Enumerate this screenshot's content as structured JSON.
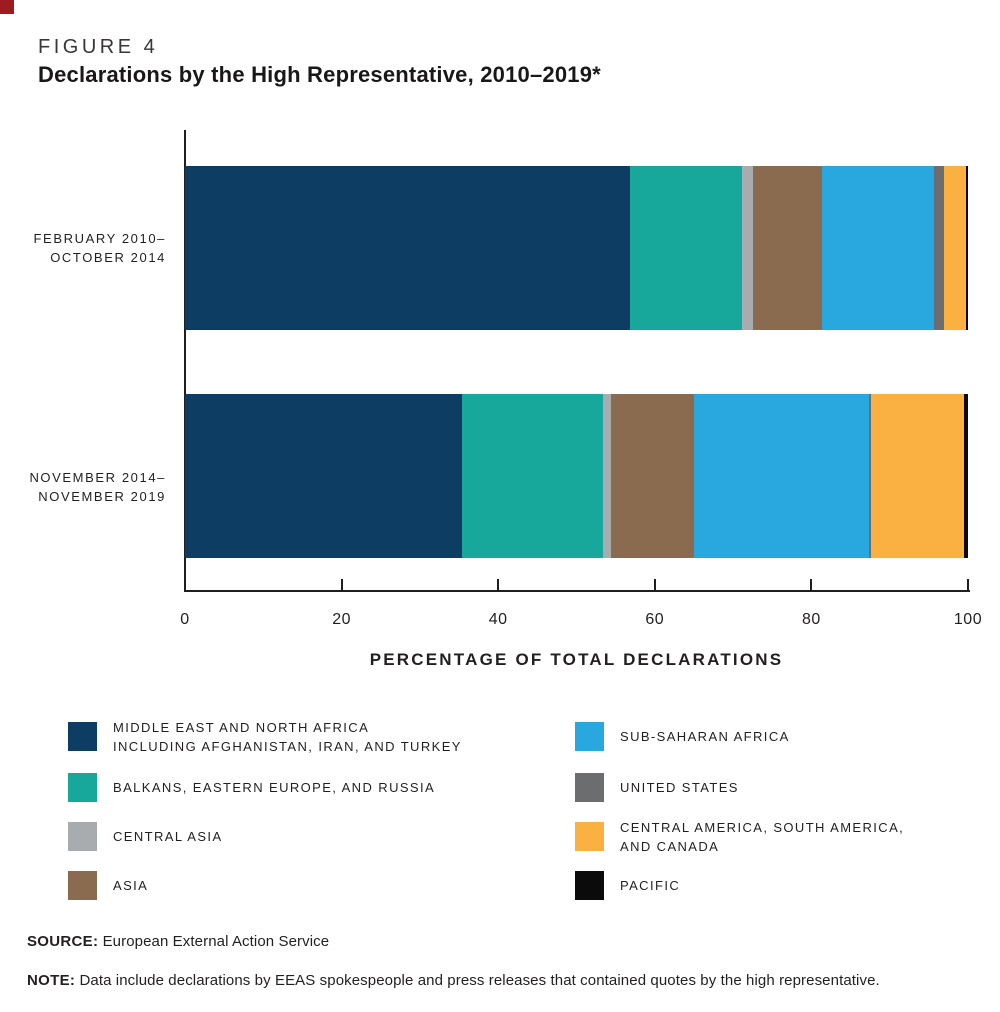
{
  "header": {
    "figure_label": "FIGURE 4",
    "title": "Declarations by the High Representative, 2010–2019*"
  },
  "footer": {
    "source_label": "SOURCE:",
    "source_text": "European External Action Service",
    "note_label": "NOTE:",
    "note_text": "Data include declarations by EEAS spokespeople and press releases that contained quotes by the high representative."
  },
  "colors": {
    "corner_accent": "#9e1b1f",
    "text": "#231f20",
    "axis": "#1f1f1f"
  },
  "chart_data": {
    "type": "bar",
    "orientation": "horizontal-stacked",
    "title": "Declarations by the High Representative, 2010–2019*",
    "xlabel": "PERCENTAGE OF TOTAL DECLARATIONS",
    "ylabel": "",
    "xlim": [
      0,
      100
    ],
    "xticks": [
      0,
      20,
      40,
      60,
      80,
      100
    ],
    "grid": false,
    "categories": [
      [
        "FEBRUARY 2010–",
        "OCTOBER 2014"
      ],
      [
        "NOVEMBER 2014–",
        "NOVEMBER 2019"
      ]
    ],
    "series": [
      {
        "name": "MIDDLE EAST AND NORTH AFRICA INCLUDING AFGHANISTAN, IRAN, AND TURKEY",
        "color": "#0d3d62",
        "values": [
          56.8,
          35.4
        ]
      },
      {
        "name": "BALKANS, EASTERN EUROPE, AND RUSSIA",
        "color": "#17a79b",
        "values": [
          14.4,
          18.0
        ]
      },
      {
        "name": "CENTRAL ASIA",
        "color": "#a8acaf",
        "values": [
          1.3,
          1.0
        ]
      },
      {
        "name": "ASIA",
        "color": "#8a6b50",
        "values": [
          8.9,
          10.6
        ]
      },
      {
        "name": "SUB-SAHARAN AFRICA",
        "color": "#29a8e0",
        "values": [
          14.3,
          22.4
        ]
      },
      {
        "name": "UNITED STATES",
        "color": "#6c6d6f",
        "values": [
          1.2,
          0.2
        ]
      },
      {
        "name": "CENTRAL AMERICA, SOUTH AMERICA, AND CANADA",
        "color": "#fbb042",
        "values": [
          2.8,
          11.9
        ]
      },
      {
        "name": "PACIFIC",
        "color": "#0b0b0b",
        "values": [
          0.3,
          0.5
        ]
      }
    ],
    "legend_position": "bottom-two-columns",
    "legend": [
      {
        "column": "left",
        "row": 0,
        "color": "#0d3d62",
        "lines": [
          "MIDDLE EAST AND NORTH AFRICA",
          "INCLUDING AFGHANISTAN, IRAN, AND TURKEY"
        ]
      },
      {
        "column": "left",
        "row": 1,
        "color": "#17a79b",
        "lines": [
          "BALKANS, EASTERN EUROPE, AND RUSSIA"
        ]
      },
      {
        "column": "left",
        "row": 2,
        "color": "#a8acaf",
        "lines": [
          "CENTRAL ASIA"
        ]
      },
      {
        "column": "left",
        "row": 3,
        "color": "#8a6b50",
        "lines": [
          "ASIA"
        ]
      },
      {
        "column": "right",
        "row": 0,
        "color": "#29a8e0",
        "lines": [
          "SUB-SAHARAN AFRICA"
        ]
      },
      {
        "column": "right",
        "row": 1,
        "color": "#6c6d6f",
        "lines": [
          "UNITED STATES"
        ]
      },
      {
        "column": "right",
        "row": 2,
        "color": "#fbb042",
        "lines": [
          "CENTRAL AMERICA, SOUTH AMERICA,",
          "AND CANADA"
        ]
      },
      {
        "column": "right",
        "row": 3,
        "color": "#0b0b0b",
        "lines": [
          "PACIFIC"
        ]
      }
    ]
  }
}
